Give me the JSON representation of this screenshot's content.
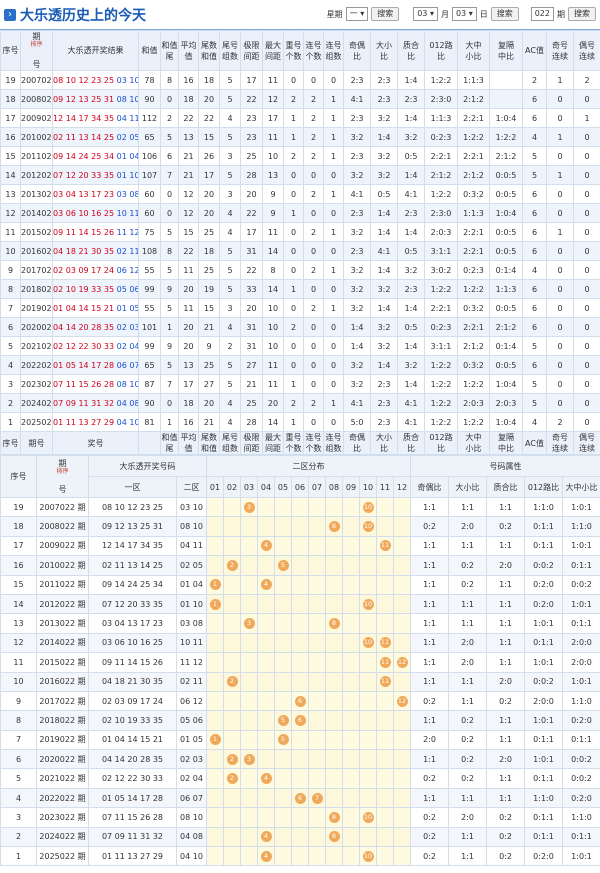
{
  "header": {
    "title": "大乐透历史上的今天",
    "weekday_label": "星期",
    "weekday_value": "一",
    "search": "搜索",
    "month_value": "03",
    "month_label": "月",
    "day_value": "03",
    "day_label": "日",
    "issue_value": "022",
    "issue_label": "期"
  },
  "table1": {
    "sort_label": "排序",
    "headers": [
      "序号",
      [
        "期",
        "号"
      ],
      "大乐透开奖结果",
      "和值",
      [
        "和值",
        "尾"
      ],
      [
        "平均",
        "值"
      ],
      [
        "尾数",
        "和值"
      ],
      [
        "尾号",
        "组数"
      ],
      [
        "极限",
        "间距"
      ],
      [
        "最大",
        "间距"
      ],
      [
        "重号",
        "个数"
      ],
      [
        "连号",
        "个数"
      ],
      [
        "连号",
        "组数"
      ],
      [
        "奇偶",
        "比"
      ],
      [
        "大小",
        "比"
      ],
      [
        "质合",
        "比"
      ],
      [
        "012路",
        "比"
      ],
      [
        "大中",
        "小比"
      ],
      [
        "复隔",
        "中比"
      ],
      "AC值",
      [
        "奇号",
        "连续"
      ],
      [
        "偶号",
        "连续"
      ]
    ],
    "rows": [
      [
        19,
        "2007022",
        "08 10 12 23 25",
        "03 10",
        78,
        8,
        16,
        18,
        5,
        17,
        11,
        0,
        0,
        0,
        "2:3",
        "2:3",
        "1:4",
        "1:2:2",
        "1:1:3",
        null,
        2,
        1,
        2
      ],
      [
        18,
        "2008022",
        "09 12 13 25 31",
        "08 10",
        90,
        0,
        18,
        20,
        5,
        22,
        12,
        2,
        2,
        1,
        "4:1",
        "2:3",
        "2:3",
        "2:3:0",
        "2:1:2",
        null,
        6,
        0,
        0
      ],
      [
        17,
        "2009022",
        "12 14 17 34 35",
        "04 11",
        112,
        2,
        22,
        22,
        4,
        23,
        17,
        1,
        2,
        1,
        "2:3",
        "3:2",
        "1:4",
        "1:1:3",
        "2:2:1",
        "1:0:4",
        6,
        0,
        1
      ],
      [
        16,
        "2010022",
        "02 11 13 14 25",
        "02 05",
        65,
        5,
        13,
        15,
        5,
        23,
        11,
        1,
        2,
        1,
        "3:2",
        "1:4",
        "3:2",
        "0:2:3",
        "1:2:2",
        "1:2:2",
        4,
        1,
        0
      ],
      [
        15,
        "2011022",
        "09 14 24 25 34",
        "01 04",
        106,
        6,
        21,
        26,
        3,
        25,
        10,
        2,
        2,
        1,
        "2:3",
        "3:2",
        "0:5",
        "2:2:1",
        "2:2:1",
        "2:1:2",
        5,
        0,
        0
      ],
      [
        14,
        "2012022",
        "07 12 20 33 35",
        "01 10",
        107,
        7,
        21,
        17,
        5,
        28,
        13,
        0,
        0,
        0,
        "3:2",
        "3:2",
        "1:4",
        "2:1:2",
        "2:1:2",
        "0:0:5",
        5,
        1,
        0
      ],
      [
        13,
        "2013022",
        "03 04 13 17 23",
        "03 08",
        60,
        0,
        12,
        20,
        3,
        20,
        9,
        0,
        2,
        1,
        "4:1",
        "0:5",
        "4:1",
        "1:2:2",
        "0:3:2",
        "0:0:5",
        6,
        0,
        0
      ],
      [
        12,
        "2014022",
        "03 06 10 16 25",
        "10 11",
        60,
        0,
        12,
        20,
        4,
        22,
        9,
        1,
        0,
        0,
        "2:3",
        "1:4",
        "2:3",
        "2:3:0",
        "1:1:3",
        "1:0:4",
        6,
        0,
        0
      ],
      [
        11,
        "2015022",
        "09 11 14 15 26",
        "11 12",
        75,
        5,
        15,
        25,
        4,
        17,
        11,
        0,
        2,
        1,
        "3:2",
        "1:4",
        "1:4",
        "2:0:3",
        "2:2:1",
        "0:0:5",
        6,
        1,
        0
      ],
      [
        10,
        "2016022",
        "04 18 21 30 35",
        "02 11",
        108,
        8,
        22,
        18,
        5,
        31,
        14,
        0,
        0,
        0,
        "2:3",
        "4:1",
        "0:5",
        "3:1:1",
        "2:2:1",
        "0:0:5",
        6,
        0,
        0
      ],
      [
        9,
        "2017022",
        "02 03 09 17 24",
        "06 12",
        55,
        5,
        11,
        25,
        5,
        22,
        8,
        0,
        2,
        1,
        "3:2",
        "1:4",
        "3:2",
        "3:0:2",
        "0:2:3",
        "0:1:4",
        4,
        0,
        0
      ],
      [
        8,
        "2018022",
        "02 10 19 33 35",
        "05 06",
        99,
        9,
        20,
        19,
        5,
        33,
        14,
        1,
        0,
        0,
        "3:2",
        "3:2",
        "2:3",
        "1:2:2",
        "1:2:2",
        "1:1:3",
        6,
        0,
        0
      ],
      [
        7,
        "2019022",
        "01 04 14 15 21",
        "01 05",
        55,
        5,
        11,
        15,
        3,
        20,
        10,
        0,
        2,
        1,
        "3:2",
        "1:4",
        "1:4",
        "2:2:1",
        "0:3:2",
        "0:0:5",
        6,
        0,
        0
      ],
      [
        6,
        "2020022",
        "04 14 20 28 35",
        "02 03",
        101,
        1,
        20,
        21,
        4,
        31,
        10,
        2,
        0,
        0,
        "1:4",
        "3:2",
        "0:5",
        "0:2:3",
        "2:2:1",
        "2:1:2",
        6,
        0,
        0
      ],
      [
        5,
        "2021022",
        "02 12 22 30 33",
        "02 04",
        99,
        9,
        20,
        9,
        2,
        31,
        10,
        0,
        0,
        0,
        "1:4",
        "3:2",
        "1:4",
        "3:1:1",
        "2:1:2",
        "0:1:4",
        5,
        0,
        0
      ],
      [
        4,
        "2022022",
        "01 05 14 17 28",
        "06 07",
        65,
        5,
        13,
        25,
        5,
        27,
        11,
        0,
        0,
        0,
        "3:2",
        "1:4",
        "3:2",
        "1:2:2",
        "0:3:2",
        "0:0:5",
        6,
        0,
        0
      ],
      [
        3,
        "2023022",
        "07 11 15 26 28",
        "08 10",
        87,
        7,
        17,
        27,
        5,
        21,
        11,
        1,
        0,
        0,
        "3:2",
        "2:3",
        "1:4",
        "1:2:2",
        "1:2:2",
        "1:0:4",
        5,
        0,
        0
      ],
      [
        2,
        "2024022",
        "07 09 11 31 32",
        "04 08",
        90,
        0,
        18,
        20,
        4,
        25,
        20,
        2,
        2,
        1,
        "4:1",
        "2:3",
        "4:1",
        "1:2:2",
        "2:0:3",
        "2:0:3",
        5,
        0,
        0
      ],
      [
        1,
        "2025022",
        "01 11 13 27 29",
        "04 10",
        81,
        1,
        16,
        21,
        4,
        28,
        14,
        1,
        0,
        0,
        "5:0",
        "2:3",
        "4:1",
        "1:2:2",
        "1:2:2",
        "1:0:4",
        4,
        2,
        0
      ]
    ],
    "footers": [
      "序号",
      "期号",
      "奖号",
      null,
      [
        "和值",
        "尾"
      ],
      [
        "平均",
        "值"
      ],
      [
        "尾数",
        "和值"
      ],
      [
        "尾号",
        "组数"
      ],
      [
        "极限",
        "间距"
      ],
      [
        "最大",
        "间距"
      ],
      [
        "重号",
        "个数"
      ],
      [
        "连号",
        "个数"
      ],
      [
        "连号",
        "组数"
      ],
      [
        "奇偶",
        "比"
      ],
      [
        "大小",
        "比"
      ],
      [
        "质合",
        "比"
      ],
      [
        "012路",
        "比"
      ],
      [
        "大中",
        "小比"
      ],
      [
        "复隔",
        "中比"
      ],
      "AC值",
      [
        "奇号",
        "连续"
      ],
      [
        "偶号",
        "连续"
      ]
    ]
  },
  "table2": {
    "sort_label": "排序",
    "group_headers": [
      "序号",
      [
        "期",
        "号"
      ],
      "大乐透开奖号码",
      "二区分布",
      "号码属性"
    ],
    "sub_headers": [
      "一区",
      "二区",
      "01",
      "02",
      "03",
      "04",
      "05",
      "06",
      "07",
      "08",
      "09",
      "10",
      "11",
      "12",
      "奇偶比",
      "大小比",
      "质合比",
      "012路比",
      "大中小比"
    ],
    "rows": [
      [
        19,
        "2007022 期",
        "08 10 12 23 25",
        "03 10",
        [
          3,
          10
        ],
        "1:1",
        "1:1",
        "1:1",
        "1:1:0",
        "1:0:1"
      ],
      [
        18,
        "2008022 期",
        "09 12 13 25 31",
        "08 10",
        [
          8,
          10
        ],
        "0:2",
        "2:0",
        "0:2",
        "0:1:1",
        "1:1:0"
      ],
      [
        17,
        "2009022 期",
        "12 14 17 34 35",
        "04 11",
        [
          4,
          11
        ],
        "1:1",
        "1:1",
        "1:1",
        "0:1:1",
        "1:0:1"
      ],
      [
        16,
        "2010022 期",
        "02 11 13 14 25",
        "02 05",
        [
          2,
          5
        ],
        "1:1",
        "0:2",
        "2:0",
        "0:0:2",
        "0:1:1"
      ],
      [
        15,
        "2011022 期",
        "09 14 24 25 34",
        "01 04",
        [
          1,
          4
        ],
        "1:1",
        "0:2",
        "1:1",
        "0:2:0",
        "0:0:2"
      ],
      [
        14,
        "2012022 期",
        "07 12 20 33 35",
        "01 10",
        [
          1,
          10
        ],
        "1:1",
        "1:1",
        "1:1",
        "0:2:0",
        "1:0:1"
      ],
      [
        13,
        "2013022 期",
        "03 04 13 17 23",
        "03 08",
        [
          3,
          8
        ],
        "1:1",
        "1:1",
        "1:1",
        "1:0:1",
        "0:1:1"
      ],
      [
        12,
        "2014022 期",
        "03 06 10 16 25",
        "10 11",
        [
          10,
          11
        ],
        "1:1",
        "2:0",
        "1:1",
        "0:1:1",
        "2:0:0"
      ],
      [
        11,
        "2015022 期",
        "09 11 14 15 26",
        "11 12",
        [
          11,
          12
        ],
        "1:1",
        "2:0",
        "1:1",
        "1:0:1",
        "2:0:0"
      ],
      [
        10,
        "2016022 期",
        "04 18 21 30 35",
        "02 11",
        [
          2,
          11
        ],
        "1:1",
        "1:1",
        "2:0",
        "0:0:2",
        "1:0:1"
      ],
      [
        9,
        "2017022 期",
        "02 03 09 17 24",
        "06 12",
        [
          6,
          12
        ],
        "0:2",
        "1:1",
        "0:2",
        "2:0:0",
        "1:1:0"
      ],
      [
        8,
        "2018022 期",
        "02 10 19 33 35",
        "05 06",
        [
          5,
          6
        ],
        "1:1",
        "0:2",
        "1:1",
        "1:0:1",
        "0:2:0"
      ],
      [
        7,
        "2019022 期",
        "01 04 14 15 21",
        "01 05",
        [
          1,
          5
        ],
        "2:0",
        "0:2",
        "1:1",
        "0:1:1",
        "0:1:1"
      ],
      [
        6,
        "2020022 期",
        "04 14 20 28 35",
        "02 03",
        [
          2,
          3
        ],
        "1:1",
        "0:2",
        "2:0",
        "1:0:1",
        "0:0:2"
      ],
      [
        5,
        "2021022 期",
        "02 12 22 30 33",
        "02 04",
        [
          2,
          4
        ],
        "0:2",
        "0:2",
        "1:1",
        "0:1:1",
        "0:0:2"
      ],
      [
        4,
        "2022022 期",
        "01 05 14 17 28",
        "06 07",
        [
          6,
          7
        ],
        "1:1",
        "1:1",
        "1:1",
        "1:1:0",
        "0:2:0"
      ],
      [
        3,
        "2023022 期",
        "07 11 15 26 28",
        "08 10",
        [
          8,
          10
        ],
        "0:2",
        "2:0",
        "0:2",
        "0:1:1",
        "1:1:0"
      ],
      [
        2,
        "2024022 期",
        "07 09 11 31 32",
        "04 08",
        [
          4,
          8
        ],
        "0:2",
        "1:1",
        "0:2",
        "0:1:1",
        "0:1:1"
      ],
      [
        1,
        "2025022 期",
        "01 11 13 27 29",
        "04 10",
        [
          4,
          10
        ],
        "0:2",
        "1:1",
        "0:2",
        "0:2:0",
        "1:0:1"
      ]
    ]
  }
}
